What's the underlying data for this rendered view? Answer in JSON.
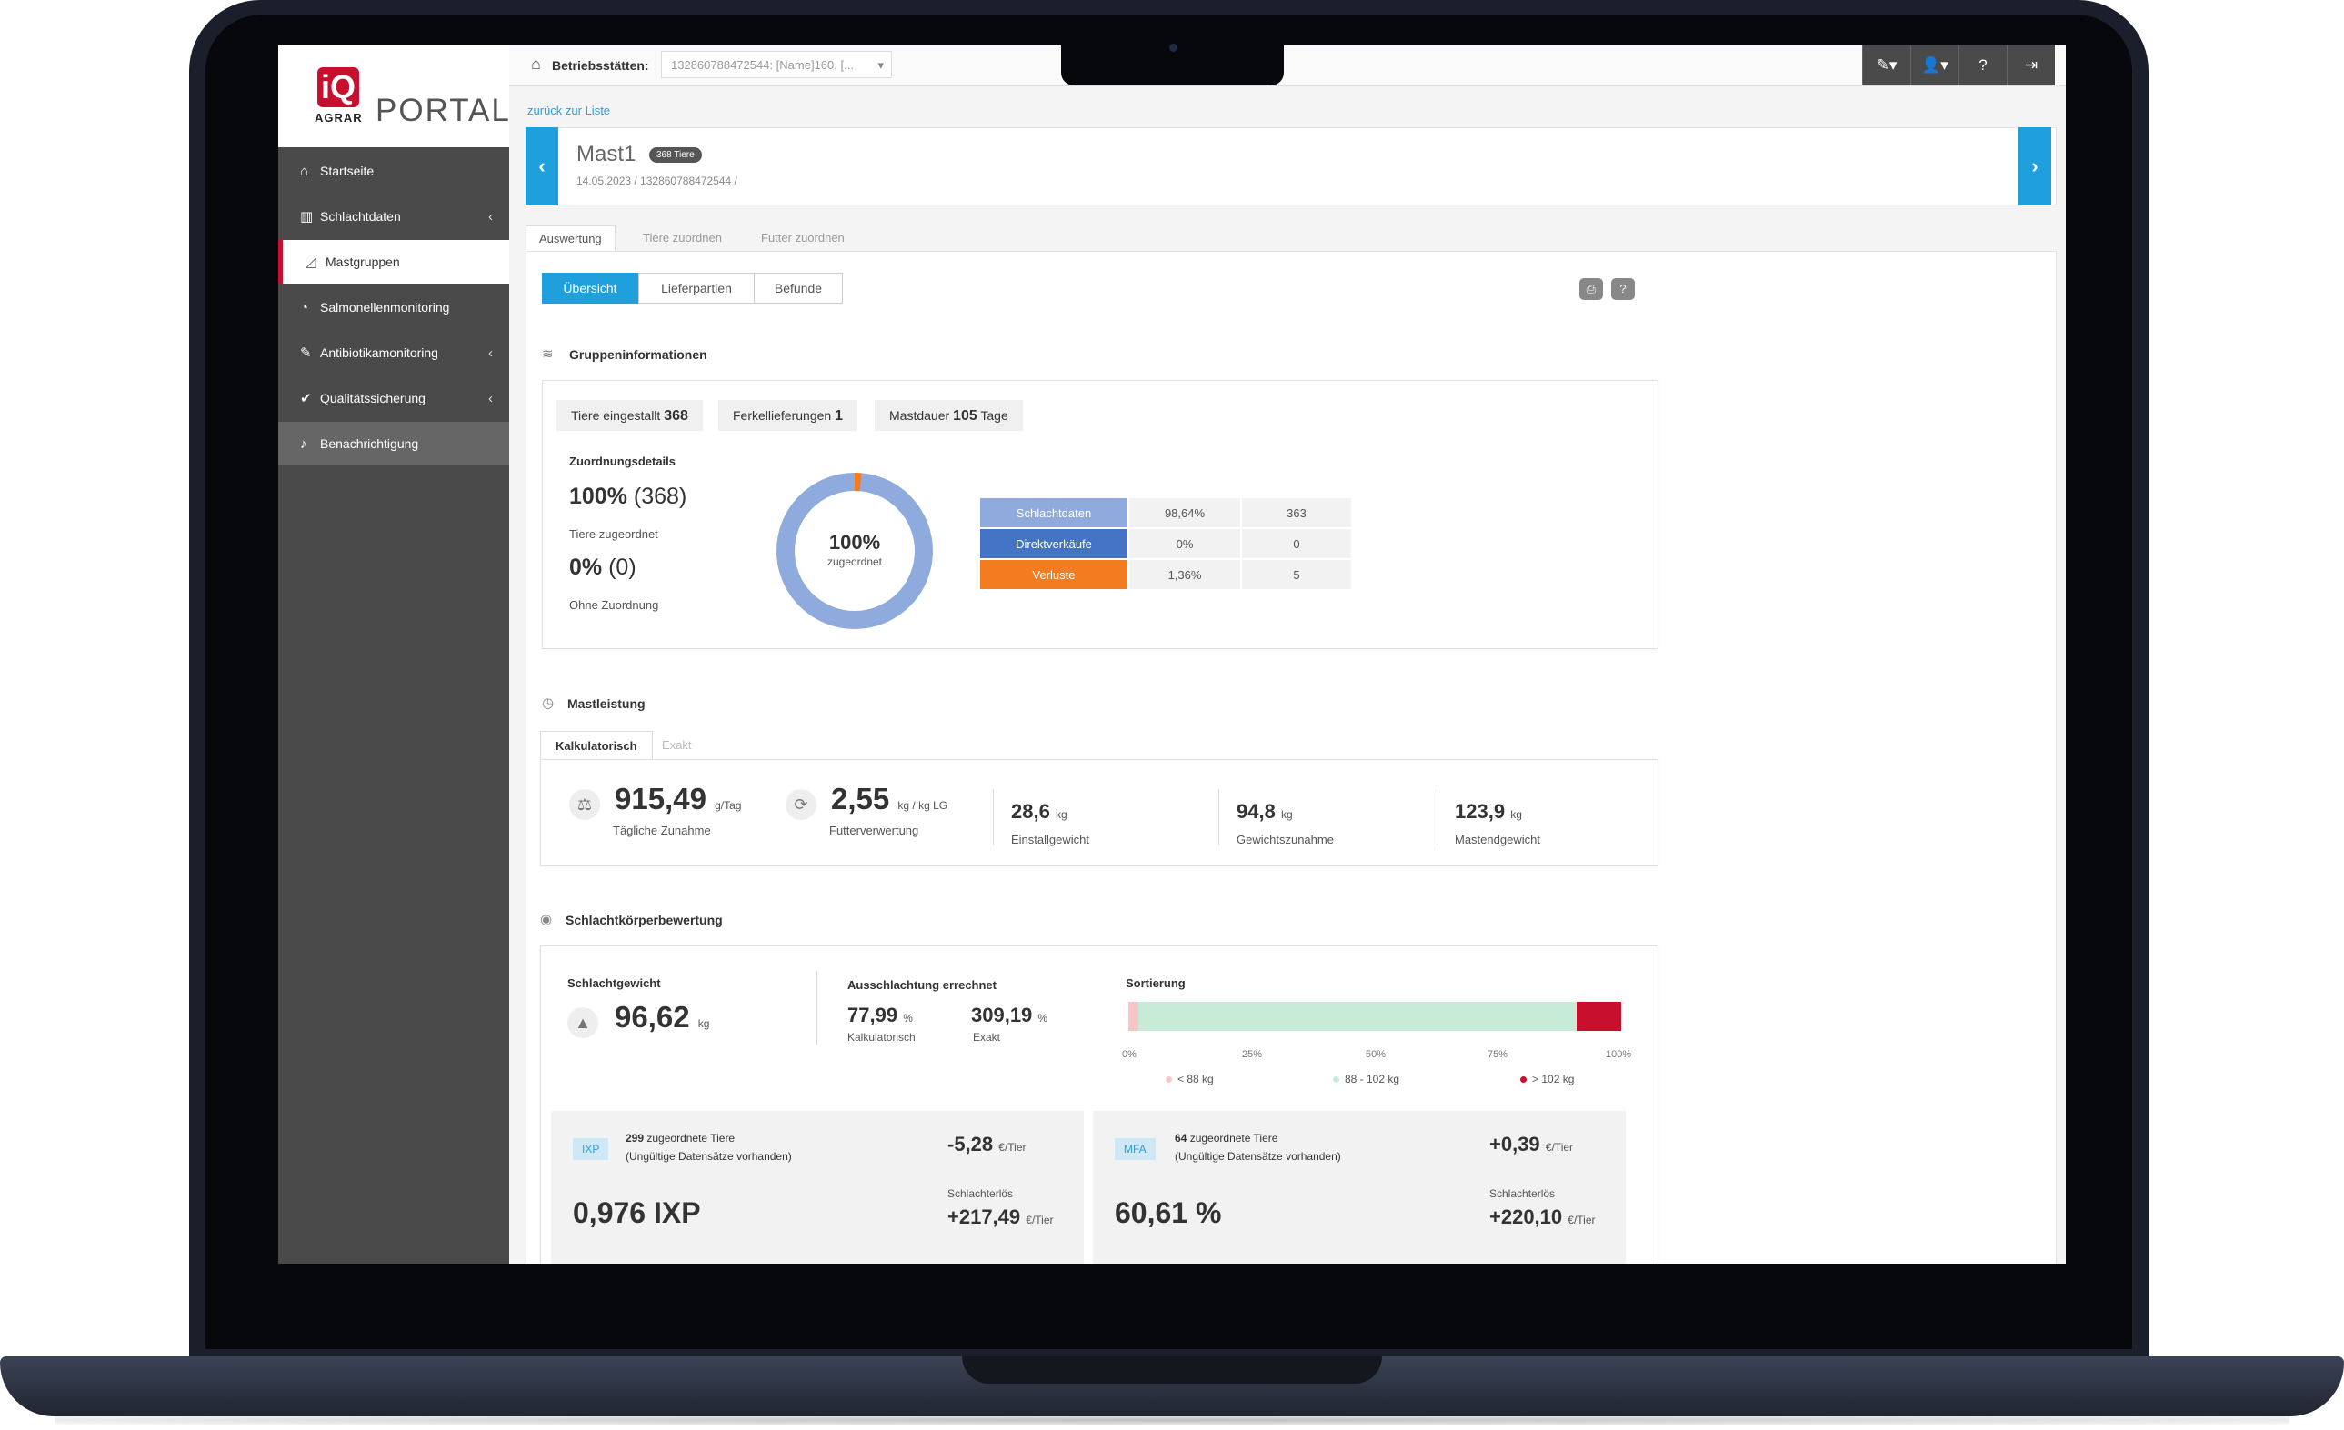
{
  "app": {
    "logo_mark": "iQ",
    "logo_agrar": "AGRAR",
    "logo_portal": "PORTAL"
  },
  "sidebar": {
    "items": [
      {
        "label": "Startseite",
        "icon": "home-icon",
        "chevron": ""
      },
      {
        "label": "Schlachtdaten",
        "icon": "bar-chart-icon",
        "chevron": "‹"
      },
      {
        "label": "Mastgruppen",
        "icon": "area-chart-icon",
        "chevron": ""
      },
      {
        "label": "Salmonellenmonitoring",
        "icon": "salmonella-icon",
        "chevron": ""
      },
      {
        "label": "Antibiotikamonitoring",
        "icon": "syringe-icon",
        "chevron": "‹"
      },
      {
        "label": "Qualitätssicherung",
        "icon": "check-badge-icon",
        "chevron": "‹"
      },
      {
        "label": "Benachrichtigung",
        "icon": "bell-icon",
        "chevron": ""
      }
    ]
  },
  "topbar": {
    "site_label": "Betriebsstätten:",
    "site_value": "132860788472544: [Name]160, [...",
    "buttons": [
      "✎▾",
      "👤▾",
      "?",
      "⇥"
    ]
  },
  "back_link": "zurück zur Liste",
  "header": {
    "title": "Mast1",
    "badge": "368 Tiere",
    "subtitle": "14.05.2023 / 132860788472544 /"
  },
  "main_tabs": [
    "Auswertung",
    "Tiere zuordnen",
    "Futter zuordnen"
  ],
  "sub_tabs": [
    "Übersicht",
    "Lieferpartien",
    "Befunde"
  ],
  "gruppen": {
    "title": "Gruppeninformationen",
    "pills": [
      {
        "label": "Tiere eingestallt",
        "value": "368",
        "unit": ""
      },
      {
        "label": "Ferkellieferungen",
        "value": "1",
        "unit": ""
      },
      {
        "label": "Mastdauer",
        "value": "105",
        "unit": "Tage"
      }
    ],
    "zuordnung_title": "Zuordnungsdetails",
    "assigned_pct": "100%",
    "assigned_count": "(368)",
    "assigned_label": "Tiere zugeordnet",
    "unassigned_pct": "0%",
    "unassigned_count": "(0)",
    "unassigned_label": "Ohne Zuordnung",
    "donut_value": "100%",
    "donut_label": "zugeordnet",
    "donut_assigned_fraction": 0.9864,
    "table": [
      {
        "cat": "Schlachtdaten",
        "pct": "98,64%",
        "count": "363",
        "color": "#8faadc"
      },
      {
        "cat": "Direktverkäufe",
        "pct": "0%",
        "count": "0",
        "color": "#4472c4"
      },
      {
        "cat": "Verluste",
        "pct": "1,36%",
        "count": "5",
        "color": "#f47c20"
      }
    ]
  },
  "mastleistung": {
    "title": "Mastleistung",
    "tabs": [
      "Kalkulatorisch",
      "Exakt"
    ],
    "kpis": [
      {
        "value": "915,49",
        "unit": "g/Tag",
        "label": "Tägliche Zunahme"
      },
      {
        "value": "2,55",
        "unit": "kg / kg LG",
        "label": "Futterverwertung"
      },
      {
        "value": "28,6",
        "unit": "kg",
        "label": "Einstallgewicht"
      },
      {
        "value": "94,8",
        "unit": "kg",
        "label": "Gewichtszunahme"
      },
      {
        "value": "123,9",
        "unit": "kg",
        "label": "Mastendgewicht"
      }
    ]
  },
  "schlacht": {
    "title": "Schlachtkörperbewertung",
    "gewicht_label": "Schlachtgewicht",
    "gewicht_value": "96,62",
    "gewicht_unit": "kg",
    "ausschl_label": "Ausschlachtung errechnet",
    "kalk_value": "77,99",
    "kalk_unit": "%",
    "kalk_label": "Kalkulatorisch",
    "exakt_value": "309,19",
    "exakt_unit": "%",
    "exakt_label": "Exakt",
    "sort_label": "Sortierung",
    "sort_fractions": {
      "low": 0.02,
      "mid": 0.89,
      "high": 0.09
    },
    "ticks": [
      "0%",
      "25%",
      "50%",
      "75%",
      "100%"
    ],
    "legend": [
      {
        "label": "< 88 kg",
        "color": "#f6c6c6"
      },
      {
        "label": "88 - 102 kg",
        "color": "#c8ebd7"
      },
      {
        "label": "> 102 kg",
        "color": "#c8102e"
      }
    ],
    "cards": [
      {
        "badge": "IXP",
        "count": "299",
        "count_label": "zugeordnete Tiere",
        "note": "(Ungültige Datensätze vorhanden)",
        "big": "0,976 IXP",
        "delta": "-5,28",
        "delta_unit": "€/Tier",
        "erloes_label": "Schlachterlös",
        "erloes": "+217,49",
        "erloes_unit": "€/Tier"
      },
      {
        "badge": "MFA",
        "count": "64",
        "count_label": "zugeordnete Tiere",
        "note": "(Ungültige Datensätze vorhanden)",
        "big": "60,61 %",
        "delta": "+0,39",
        "delta_unit": "€/Tier",
        "erloes_label": "Schlachterlös",
        "erloes": "+220,10",
        "erloes_unit": "€/Tier"
      }
    ]
  }
}
